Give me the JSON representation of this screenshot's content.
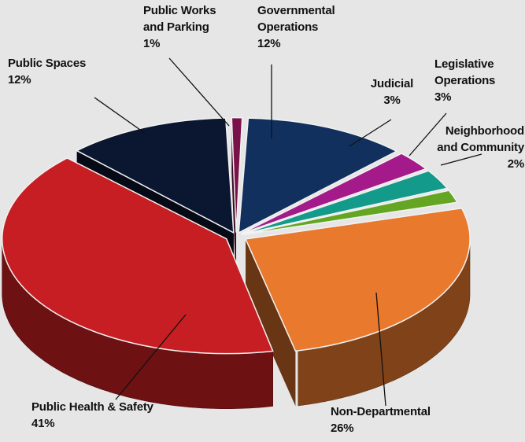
{
  "chart_data": {
    "type": "pie",
    "title": "",
    "slices": [
      {
        "label": [
          "Governmental",
          "Operations"
        ],
        "percent": "12%",
        "value": 12,
        "color": "#12305e"
      },
      {
        "label": [
          "Judicial"
        ],
        "percent": "3%",
        "value": 3,
        "color": "#a51a8a"
      },
      {
        "label": [
          "Legislative",
          "Operations"
        ],
        "percent": "3%",
        "value": 3,
        "color": "#139a8a"
      },
      {
        "label": [
          "Neighborhood",
          "and Community"
        ],
        "percent": "2%",
        "value": 2,
        "color": "#64a521"
      },
      {
        "label": [
          "Non-Departmental"
        ],
        "percent": "26%",
        "value": 26,
        "color": "#e8792d"
      },
      {
        "label": [
          "Public Health & Safety"
        ],
        "percent": "41%",
        "value": 41,
        "color": "#c61e22"
      },
      {
        "label": [
          "Public Spaces"
        ],
        "percent": "12%",
        "value": 12,
        "color": "#0b1730"
      },
      {
        "label": [
          "Public Works",
          "and Parking"
        ],
        "percent": "1%",
        "value": 1,
        "color": "#7a1148"
      }
    ],
    "legend": "none",
    "data_labels": "outside with leader lines"
  }
}
